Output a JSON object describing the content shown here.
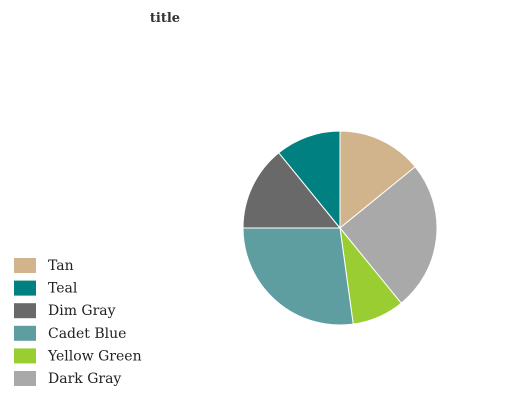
{
  "chart_data": {
    "type": "pie",
    "title": "title",
    "legend_position": "bottom-left",
    "start_angle_deg": 0,
    "direction": "clockwise",
    "slices": [
      {
        "label": "Tan",
        "value": 13,
        "color": "#d2b48c"
      },
      {
        "label": "Dark Gray",
        "value": 23,
        "color": "#a9a9a9"
      },
      {
        "label": "Yellow Green",
        "value": 8,
        "color": "#9acd32"
      },
      {
        "label": "Cadet Blue",
        "value": 25,
        "color": "#5f9ea0"
      },
      {
        "label": "Dim Gray",
        "value": 13,
        "color": "#696969"
      },
      {
        "label": "Teal",
        "value": 10,
        "color": "#008080"
      }
    ],
    "legend": [
      {
        "label": "Tan",
        "color": "#d2b48c"
      },
      {
        "label": "Teal",
        "color": "#008080"
      },
      {
        "label": "Dim Gray",
        "color": "#696969"
      },
      {
        "label": "Cadet Blue",
        "color": "#5f9ea0"
      },
      {
        "label": "Yellow Green",
        "color": "#9acd32"
      },
      {
        "label": "Dark Gray",
        "color": "#a9a9a9"
      }
    ]
  }
}
